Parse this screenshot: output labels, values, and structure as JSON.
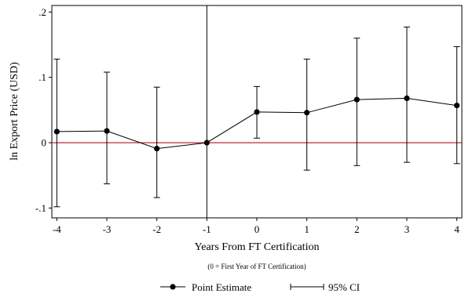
{
  "chart_data": {
    "type": "line",
    "title": "",
    "xlabel": "Years From FT Certification",
    "xlabel_note": "(0 = First Year of FT Certification)",
    "ylabel": "ln Export Price (USD)",
    "x": [
      -4,
      -3,
      -2,
      -1,
      0,
      1,
      2,
      3,
      4
    ],
    "x_tick_labels": [
      "-4",
      "-3",
      "-2",
      "-1",
      "0",
      "1",
      "2",
      "3",
      "4"
    ],
    "y_ticks": [
      -0.1,
      0,
      0.1,
      0.2
    ],
    "y_tick_labels": [
      "-.1",
      "0",
      ".1",
      ".2"
    ],
    "ylim": [
      -0.115,
      0.21
    ],
    "xlim": [
      -4.1,
      4.1
    ],
    "series": [
      {
        "name": "Point Estimate",
        "values": [
          0.017,
          0.018,
          -0.009,
          0.0,
          0.047,
          0.046,
          0.066,
          0.068,
          0.057
        ]
      }
    ],
    "ci_lower": [
      -0.098,
      -0.063,
      -0.084,
      0.0,
      0.007,
      -0.042,
      -0.035,
      -0.03,
      -0.032
    ],
    "ci_upper": [
      0.128,
      0.108,
      0.085,
      0.0,
      0.086,
      0.128,
      0.16,
      0.177,
      0.147
    ],
    "ci_name": "95% CI",
    "reference_lines": {
      "horizontal_y": 0,
      "vertical_x": -1
    },
    "colors": {
      "zero_line": "#c0283f",
      "series": "#000000",
      "frame": "#000000"
    },
    "grid": false,
    "legend_position": "bottom-center"
  }
}
